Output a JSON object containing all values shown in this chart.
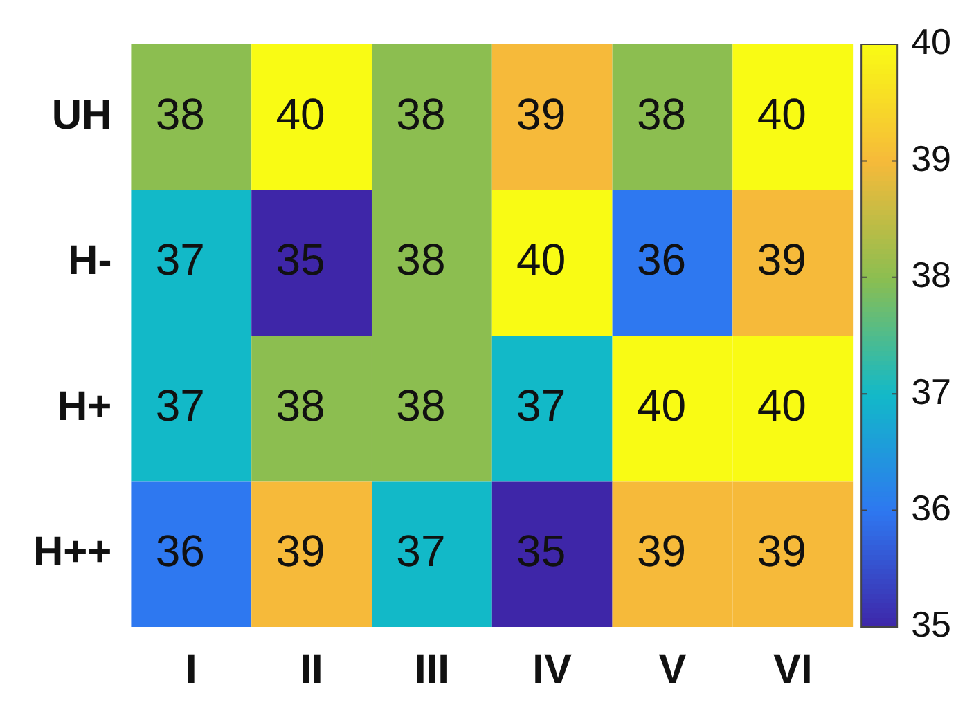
{
  "chart_data": {
    "type": "heatmap",
    "categories": [
      "I",
      "II",
      "III",
      "IV",
      "V",
      "VI"
    ],
    "y_categories": [
      "UH",
      "H-",
      "H+",
      "H++"
    ],
    "cells": [
      [
        38,
        40,
        38,
        39,
        38,
        40
      ],
      [
        37,
        35,
        38,
        40,
        36,
        39
      ],
      [
        37,
        38,
        38,
        37,
        40,
        40
      ],
      [
        36,
        39,
        37,
        35,
        39,
        39
      ]
    ],
    "data_labels": true,
    "clim": [
      35,
      40
    ],
    "cticks": [
      35,
      36,
      37,
      38,
      39,
      40
    ]
  }
}
